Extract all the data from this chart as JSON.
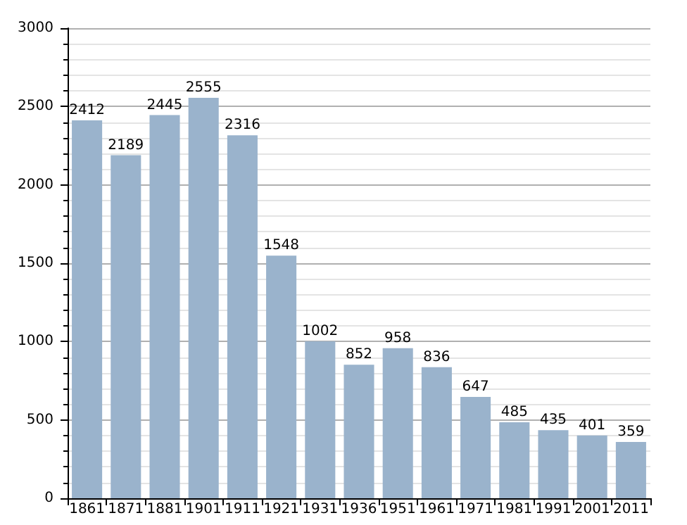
{
  "chart_data": {
    "type": "bar",
    "categories": [
      "1861",
      "1871",
      "1881",
      "1901",
      "1911",
      "1921",
      "1931",
      "1936",
      "1951",
      "1961",
      "1971",
      "1981",
      "1991",
      "2001",
      "2011"
    ],
    "values": [
      2412,
      2189,
      2445,
      2555,
      2316,
      1548,
      1002,
      852,
      958,
      836,
      647,
      485,
      435,
      401,
      359
    ],
    "color": "#9ab3cc",
    "ylim": [
      0,
      3000
    ],
    "yticks": [
      0,
      500,
      1000,
      1500,
      2000,
      2500,
      3000
    ],
    "grid": "y",
    "data_labels": true
  }
}
